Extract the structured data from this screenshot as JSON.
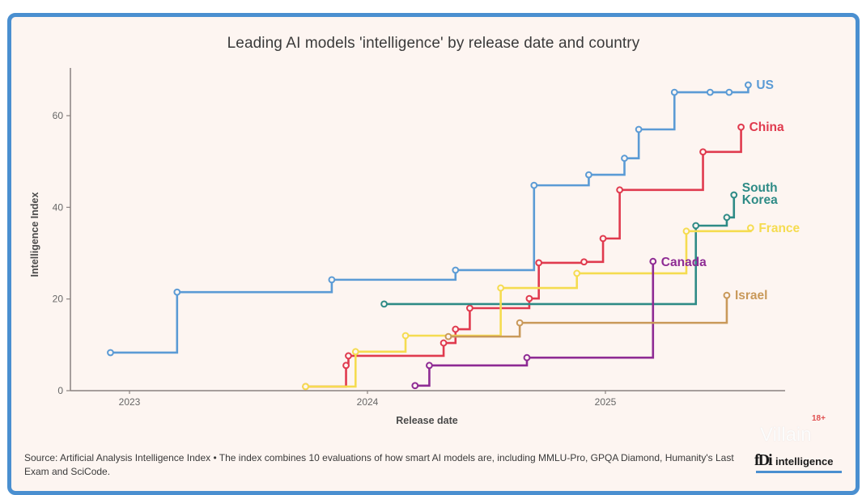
{
  "chart_data": {
    "type": "line",
    "subtype": "step",
    "title": "Leading AI models 'intelligence' by release date and country",
    "xlabel": "Release date",
    "ylabel": "Intelligence Index",
    "xlim": [
      2022.75,
      2025.75
    ],
    "ylim": [
      0,
      70
    ],
    "xticks": [
      2023,
      2024,
      2025
    ],
    "xtick_labels": [
      "2023",
      "2024",
      "2025"
    ],
    "yticks": [
      0,
      20,
      40,
      60
    ],
    "ytick_labels": [
      "0",
      "20",
      "40",
      "60"
    ],
    "grid": false,
    "legend": "direct labels at line ends (right)",
    "series": [
      {
        "name": "US",
        "label": "US",
        "color": "#5b9bd5",
        "x": [
          2022.92,
          2023.2,
          2023.85,
          2024.37,
          2024.7,
          2024.93,
          2025.08,
          2025.14,
          2025.29,
          2025.44,
          2025.52,
          2025.6
        ],
        "y": [
          8.3,
          21.5,
          24.2,
          26.3,
          44.8,
          47.1,
          50.7,
          57.0,
          65.1,
          65.1,
          65.1,
          66.7
        ]
      },
      {
        "name": "China",
        "label": "China",
        "color": "#e03a4e",
        "x": [
          2023.74,
          2023.91,
          2023.92,
          2024.32,
          2024.37,
          2024.43,
          2024.68,
          2024.72,
          2024.91,
          2024.99,
          2025.06,
          2025.41,
          2025.57
        ],
        "y": [
          0.9,
          5.5,
          7.6,
          10.4,
          13.4,
          18.0,
          20.1,
          27.9,
          28.1,
          33.2,
          43.8,
          52.1,
          57.5
        ]
      },
      {
        "name": "South Korea",
        "label": "South\nKorea",
        "label_lines": [
          "South",
          "Korea"
        ],
        "color": "#2e8b86",
        "x": [
          2024.07,
          2025.38,
          2025.51,
          2025.54
        ],
        "y": [
          18.9,
          36.0,
          37.8,
          42.7
        ]
      },
      {
        "name": "France",
        "label": "France",
        "color": "#f5dc50",
        "x": [
          2023.74,
          2023.95,
          2024.16,
          2024.56,
          2024.88,
          2025.34,
          2025.61
        ],
        "y": [
          0.9,
          8.5,
          12.0,
          22.4,
          25.6,
          34.8,
          35.5
        ]
      },
      {
        "name": "Canada",
        "label": "Canada",
        "color": "#8e2b94",
        "x": [
          2024.2,
          2024.26,
          2024.67,
          2025.2
        ],
        "y": [
          1.1,
          5.5,
          7.2,
          28.2
        ]
      },
      {
        "name": "Israel",
        "label": "Israel",
        "color": "#c9995a",
        "x": [
          2024.34,
          2024.64,
          2025.51
        ],
        "y": [
          11.8,
          14.8,
          20.8
        ]
      }
    ]
  },
  "footer": {
    "source": "Source: Artificial Analysis Intelligence Index • The index combines 10 evaluations of how smart AI models are, including MMLU-Pro, GPQA Diamond, Humanity's Last Exam and SciCode.",
    "logo_mark": "fDi",
    "logo_text": "intelligence",
    "logo_icon": "fdi-intelligence-logo"
  },
  "overlay": {
    "watermark": "Villain",
    "age_badge": "18+"
  },
  "colors": {
    "frame_border": "#4a8fd0",
    "background": "#fdf5f1",
    "axis": "#8a8280",
    "text": "#3a3a3a"
  }
}
